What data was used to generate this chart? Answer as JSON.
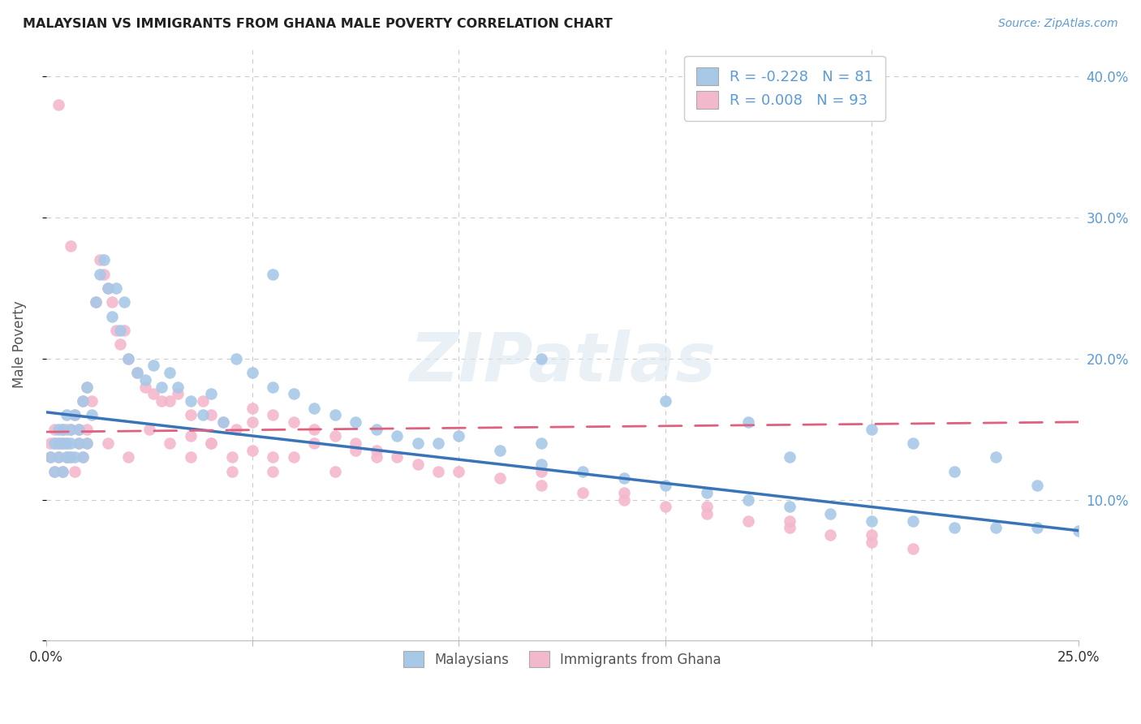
{
  "title": "MALAYSIAN VS IMMIGRANTS FROM GHANA MALE POVERTY CORRELATION CHART",
  "source": "Source: ZipAtlas.com",
  "ylabel": "Male Poverty",
  "watermark": "ZIPatlas",
  "legend_blue_R": "-0.228",
  "legend_blue_N": "81",
  "legend_pink_R": "0.008",
  "legend_pink_N": "93",
  "legend_label_blue": "Malaysians",
  "legend_label_pink": "Immigrants from Ghana",
  "xlim": [
    0.0,
    0.25
  ],
  "ylim": [
    0.0,
    0.42
  ],
  "blue_color": "#a8c8e8",
  "pink_color": "#f4b8cc",
  "line_blue": "#3a74b8",
  "line_pink": "#e06080",
  "blue_line_y0": 0.162,
  "blue_line_y1": 0.078,
  "pink_line_y0": 0.148,
  "pink_line_y1": 0.155,
  "blue_x": [
    0.001,
    0.002,
    0.002,
    0.003,
    0.003,
    0.003,
    0.004,
    0.004,
    0.004,
    0.005,
    0.005,
    0.005,
    0.006,
    0.006,
    0.006,
    0.007,
    0.007,
    0.008,
    0.008,
    0.009,
    0.009,
    0.01,
    0.01,
    0.011,
    0.012,
    0.013,
    0.014,
    0.015,
    0.016,
    0.017,
    0.018,
    0.019,
    0.02,
    0.022,
    0.024,
    0.026,
    0.028,
    0.03,
    0.032,
    0.035,
    0.038,
    0.04,
    0.043,
    0.046,
    0.05,
    0.055,
    0.06,
    0.065,
    0.07,
    0.075,
    0.08,
    0.085,
    0.09,
    0.095,
    0.1,
    0.11,
    0.12,
    0.13,
    0.14,
    0.15,
    0.16,
    0.17,
    0.18,
    0.19,
    0.2,
    0.21,
    0.22,
    0.23,
    0.24,
    0.25,
    0.055,
    0.12,
    0.15,
    0.17,
    0.2,
    0.21,
    0.23,
    0.12,
    0.18,
    0.22,
    0.24
  ],
  "blue_y": [
    0.13,
    0.12,
    0.14,
    0.13,
    0.14,
    0.15,
    0.12,
    0.14,
    0.15,
    0.13,
    0.14,
    0.16,
    0.13,
    0.15,
    0.14,
    0.13,
    0.16,
    0.14,
    0.15,
    0.13,
    0.17,
    0.14,
    0.18,
    0.16,
    0.24,
    0.26,
    0.27,
    0.25,
    0.23,
    0.25,
    0.22,
    0.24,
    0.2,
    0.19,
    0.185,
    0.195,
    0.18,
    0.19,
    0.18,
    0.17,
    0.16,
    0.175,
    0.155,
    0.2,
    0.19,
    0.18,
    0.175,
    0.165,
    0.16,
    0.155,
    0.15,
    0.145,
    0.14,
    0.14,
    0.145,
    0.135,
    0.125,
    0.12,
    0.115,
    0.11,
    0.105,
    0.1,
    0.095,
    0.09,
    0.085,
    0.085,
    0.08,
    0.08,
    0.08,
    0.078,
    0.26,
    0.2,
    0.17,
    0.155,
    0.15,
    0.14,
    0.13,
    0.14,
    0.13,
    0.12,
    0.11
  ],
  "pink_x": [
    0.001,
    0.001,
    0.002,
    0.002,
    0.002,
    0.003,
    0.003,
    0.003,
    0.004,
    0.004,
    0.004,
    0.005,
    0.005,
    0.005,
    0.006,
    0.006,
    0.006,
    0.007,
    0.007,
    0.008,
    0.008,
    0.009,
    0.009,
    0.01,
    0.01,
    0.011,
    0.012,
    0.013,
    0.014,
    0.015,
    0.016,
    0.017,
    0.018,
    0.019,
    0.02,
    0.022,
    0.024,
    0.026,
    0.028,
    0.03,
    0.032,
    0.035,
    0.038,
    0.04,
    0.043,
    0.046,
    0.05,
    0.055,
    0.06,
    0.065,
    0.07,
    0.075,
    0.08,
    0.085,
    0.09,
    0.095,
    0.1,
    0.11,
    0.12,
    0.13,
    0.14,
    0.15,
    0.16,
    0.17,
    0.18,
    0.19,
    0.2,
    0.21,
    0.035,
    0.04,
    0.045,
    0.05,
    0.055,
    0.06,
    0.065,
    0.07,
    0.075,
    0.08,
    0.12,
    0.14,
    0.16,
    0.18,
    0.2,
    0.01,
    0.015,
    0.02,
    0.025,
    0.03,
    0.035,
    0.04,
    0.045,
    0.05,
    0.055
  ],
  "pink_y": [
    0.13,
    0.14,
    0.12,
    0.14,
    0.15,
    0.13,
    0.14,
    0.38,
    0.12,
    0.14,
    0.15,
    0.13,
    0.15,
    0.14,
    0.28,
    0.13,
    0.15,
    0.12,
    0.16,
    0.14,
    0.15,
    0.13,
    0.17,
    0.14,
    0.18,
    0.17,
    0.24,
    0.27,
    0.26,
    0.25,
    0.24,
    0.22,
    0.21,
    0.22,
    0.2,
    0.19,
    0.18,
    0.175,
    0.17,
    0.17,
    0.175,
    0.16,
    0.17,
    0.16,
    0.155,
    0.15,
    0.165,
    0.16,
    0.155,
    0.15,
    0.145,
    0.14,
    0.135,
    0.13,
    0.125,
    0.12,
    0.12,
    0.115,
    0.11,
    0.105,
    0.1,
    0.095,
    0.09,
    0.085,
    0.08,
    0.075,
    0.07,
    0.065,
    0.13,
    0.14,
    0.12,
    0.155,
    0.13,
    0.13,
    0.14,
    0.12,
    0.135,
    0.13,
    0.12,
    0.105,
    0.095,
    0.085,
    0.075,
    0.15,
    0.14,
    0.13,
    0.15,
    0.14,
    0.145,
    0.14,
    0.13,
    0.135,
    0.12
  ]
}
